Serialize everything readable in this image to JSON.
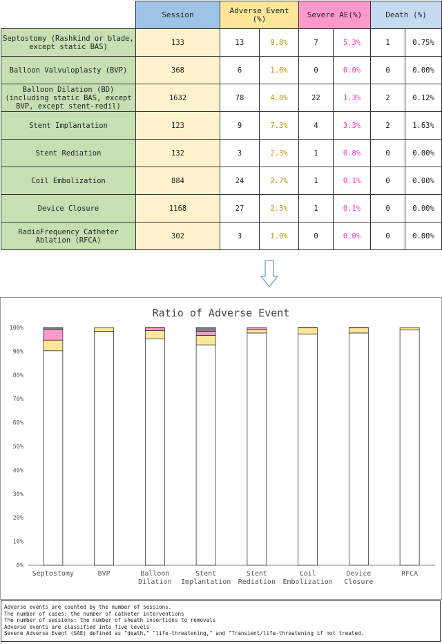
{
  "table": {
    "headers": {
      "session": "Session",
      "adverse_event": "Adverse Event (%)",
      "severe_ae": "Severe AE(%)",
      "death": "Death (%)"
    },
    "rows": [
      {
        "procedure": "Septostomy (Rashkind or blade, except static BAS)",
        "session": "133",
        "ae_n": "13",
        "ae_pct": "9.8%",
        "sae_n": "7",
        "sae_pct": "5.3%",
        "death_n": "1",
        "death_pct": "0.75%"
      },
      {
        "procedure": "Balloon Valvuloplasty (BVP)",
        "session": "368",
        "ae_n": "6",
        "ae_pct": "1.6%",
        "sae_n": "0",
        "sae_pct": "0.0%",
        "death_n": "0",
        "death_pct": "0.00%"
      },
      {
        "procedure": "Balloon Dilation (BD) (including static BAS, except BVP, except stent-redil)",
        "session": "1632",
        "ae_n": "78",
        "ae_pct": "4.8%",
        "sae_n": "22",
        "sae_pct": "1.3%",
        "death_n": "2",
        "death_pct": "0.12%"
      },
      {
        "procedure": "Stent Implantation",
        "session": "123",
        "ae_n": "9",
        "ae_pct": "7.3%",
        "sae_n": "4",
        "sae_pct": "3.3%",
        "death_n": "2",
        "death_pct": "1.63%"
      },
      {
        "procedure": "Stent Rediation",
        "session": "132",
        "ae_n": "3",
        "ae_pct": "2.3%",
        "sae_n": "1",
        "sae_pct": "0.8%",
        "death_n": "0",
        "death_pct": "0.00%"
      },
      {
        "procedure": "Coil Embolization",
        "session": "884",
        "ae_n": "24",
        "ae_pct": "2.7%",
        "sae_n": "1",
        "sae_pct": "0.1%",
        "death_n": "0",
        "death_pct": "0.00%"
      },
      {
        "procedure": "Device Closure",
        "session": "1168",
        "ae_n": "27",
        "ae_pct": "2.3%",
        "sae_n": "1",
        "sae_pct": "0.1%",
        "death_n": "0",
        "death_pct": "0.00%"
      },
      {
        "procedure": "RadioFrequency Catheter Ablation (RFCA)",
        "session": "302",
        "ae_n": "3",
        "ae_pct": "1.0%",
        "sae_n": "0",
        "sae_pct": "0.0%",
        "death_n": "0",
        "death_pct": "0.00%"
      }
    ]
  },
  "colors": {
    "no_event": "#ffffff",
    "adverse_event": "#ffe699",
    "severe_ae": "#ff99cc",
    "death": "#7f7f7f"
  },
  "chart_data": {
    "type": "bar",
    "stacked": true,
    "title": "Ratio of Adverse Event",
    "categories": [
      "Septostomy",
      "BVP",
      "Balloon\nDilation",
      "Stent\nImplantation",
      "Stent\nRediation",
      "Coil\nEmbolization",
      "Device\nClosure",
      "RFCA"
    ],
    "series": [
      {
        "key": "no_event",
        "values": [
          90.2,
          98.4,
          95.2,
          92.7,
          97.7,
          97.3,
          97.7,
          99.0
        ]
      },
      {
        "key": "adverse_event",
        "values": [
          4.5,
          1.6,
          3.5,
          4.0,
          1.5,
          2.6,
          2.2,
          1.0
        ]
      },
      {
        "key": "severe_ae",
        "values": [
          4.55,
          0.0,
          1.18,
          1.67,
          0.8,
          0.1,
          0.1,
          0.0
        ]
      },
      {
        "key": "death",
        "values": [
          0.75,
          0.0,
          0.12,
          1.63,
          0.0,
          0.0,
          0.0,
          0.0
        ]
      }
    ],
    "ylim": [
      0,
      100
    ],
    "yticks": [
      "0%",
      "10%",
      "20%",
      "30%",
      "40%",
      "50%",
      "60%",
      "70%",
      "80%",
      "90%",
      "100%"
    ],
    "grid": false,
    "legend": "none"
  },
  "notes": [
    "Adverse events are counted by the number of sessions.",
    "The number of cases: the number of catheter interventions",
    "The number of sessions: the number of sheath insertions to removals",
    "Adverse events are classified into five levels",
    "Severe Adverse Event (SAE) defined as \"death,\" \"life-threatening,\" and \"Transient/life-threatening if not treated."
  ]
}
